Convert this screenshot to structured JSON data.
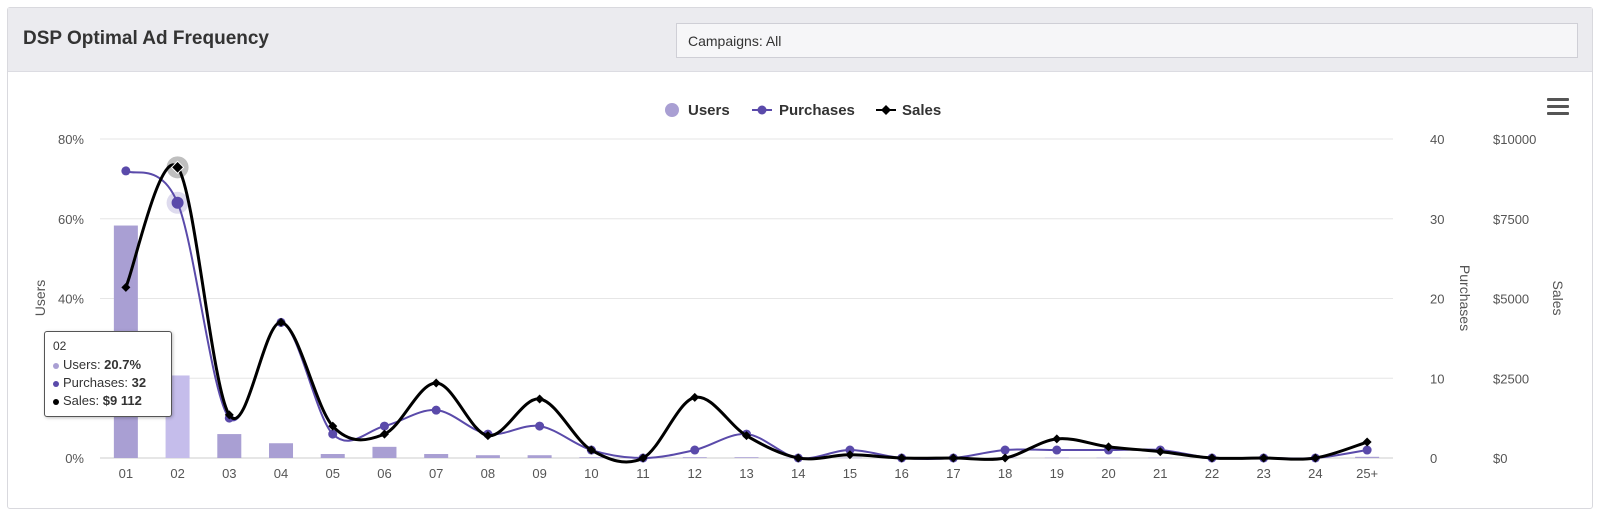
{
  "header": {
    "title": "DSP Optimal Ad Frequency",
    "campaign_filter": "Campaigns: All"
  },
  "icons": {
    "menu": "hamburger-menu-icon"
  },
  "colors": {
    "users_bar": "#a99fd3",
    "users_bar_highlight": "#c5bdeb",
    "purchases": "#5a4aaa",
    "sales": "#000000",
    "grid": "#e6e6e6"
  },
  "tooltip": {
    "category": "02",
    "users_label": "Users: ",
    "users_value": "20.7%",
    "purchases_label": "Purchases: ",
    "purchases_value": "32",
    "sales_label": "Sales: ",
    "sales_value": "$9 112"
  },
  "chart_data": {
    "type": "bar",
    "categories": [
      "01",
      "02",
      "03",
      "04",
      "05",
      "06",
      "07",
      "08",
      "09",
      "10",
      "11",
      "12",
      "13",
      "14",
      "15",
      "16",
      "17",
      "18",
      "19",
      "20",
      "21",
      "22",
      "23",
      "24",
      "25+"
    ],
    "legend": [
      "Users",
      "Purchases",
      "Sales"
    ],
    "legend_position": "top-center",
    "grid": true,
    "highlighted_category": "02",
    "axes": {
      "users": {
        "label": "Users",
        "ticks": [
          "0%",
          "20%",
          "40%",
          "60%",
          "80%"
        ],
        "range": [
          0,
          80
        ]
      },
      "purchases": {
        "label": "Purchases",
        "ticks": [
          "0",
          "10",
          "20",
          "30",
          "40"
        ],
        "range": [
          0,
          40
        ]
      },
      "sales": {
        "label": "Sales",
        "ticks": [
          "$0",
          "$2500",
          "$5000",
          "$7500",
          "$10000"
        ],
        "range": [
          0,
          10000
        ]
      }
    },
    "series": [
      {
        "name": "Users",
        "type": "bar",
        "axis": "users",
        "values": [
          58.3,
          20.7,
          6.0,
          3.7,
          1.0,
          2.8,
          1.0,
          0.7,
          0.7,
          0.2,
          0.1,
          0.2,
          0.2,
          0.1,
          0.1,
          0.1,
          0.1,
          0.1,
          0.1,
          0.1,
          0.1,
          0.1,
          0.1,
          0.1,
          0.3
        ]
      },
      {
        "name": "Purchases",
        "type": "line",
        "axis": "purchases",
        "values": [
          36,
          32,
          5,
          17,
          3,
          4,
          6,
          3,
          4,
          1,
          0,
          1,
          3,
          0,
          1,
          0,
          0,
          1,
          1,
          1,
          1,
          0,
          0,
          0,
          1
        ]
      },
      {
        "name": "Sales",
        "type": "line",
        "axis": "sales",
        "values": [
          5350,
          9112,
          1350,
          4250,
          1000,
          750,
          2350,
          700,
          1850,
          250,
          0,
          1900,
          700,
          0,
          100,
          0,
          0,
          0,
          600,
          350,
          200,
          0,
          0,
          0,
          500
        ]
      }
    ]
  }
}
